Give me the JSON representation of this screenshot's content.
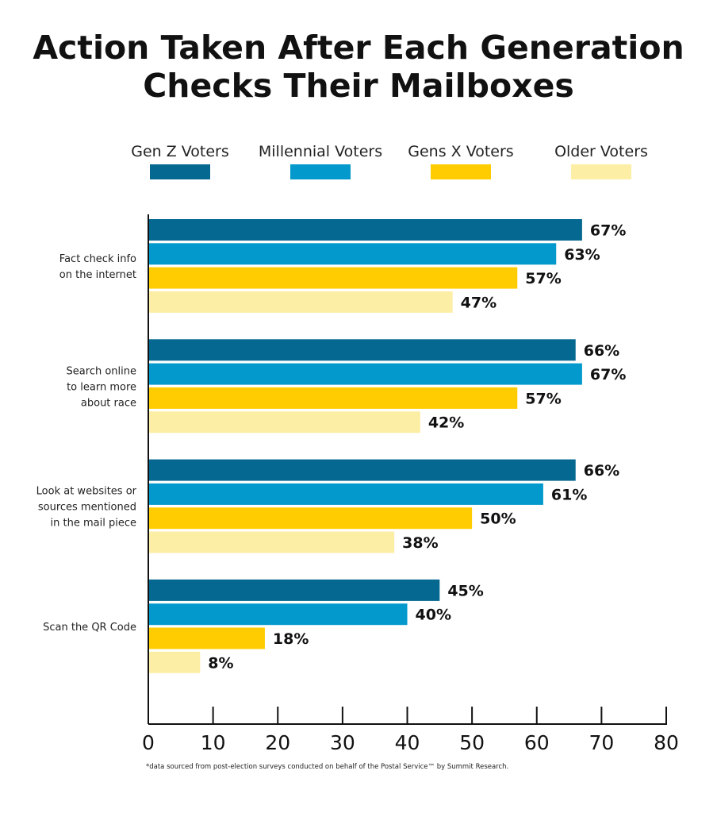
{
  "title_lines": [
    "Action Taken After Each Generation",
    "Checks Their Mailboxes"
  ],
  "footnote": "*data sourced from post-election surveys conducted on behalf of the Postal Service™ by Summit Research.",
  "chart_data": {
    "type": "bar",
    "orientation": "horizontal",
    "title": "Action Taken After Each Generation Checks Their Mailboxes",
    "categories": [
      "Fact check info on the internet",
      "Search online to learn more about race",
      "Look at websites or sources mentioned in the mail piece",
      "Scan the QR Code"
    ],
    "category_label_lines": [
      [
        "Fact check info",
        "on the internet"
      ],
      [
        "Search online",
        "to learn more",
        "about race"
      ],
      [
        "Look at websites or",
        "sources mentioned",
        "in the mail piece"
      ],
      [
        "Scan the QR Code"
      ]
    ],
    "series": [
      {
        "name": "Gen Z Voters",
        "color": "#046890",
        "values": [
          67,
          66,
          66,
          45
        ],
        "labels": [
          "67%",
          "66%",
          "66%",
          "45%"
        ]
      },
      {
        "name": "Millennial Voters",
        "color": "#0399cc",
        "values": [
          63,
          67,
          61,
          40
        ],
        "labels": [
          "63%",
          "67%",
          "61%",
          "40%"
        ]
      },
      {
        "name": "Gens X Voters",
        "color": "#fecc00",
        "values": [
          57,
          57,
          50,
          18
        ],
        "labels": [
          "57%",
          "57%",
          "50%",
          "18%"
        ]
      },
      {
        "name": "Older Voters",
        "color": "#fdeea5",
        "values": [
          47,
          42,
          38,
          8
        ],
        "labels": [
          "47%",
          "42%",
          "38%",
          "8%"
        ]
      }
    ],
    "xlim": [
      0,
      80
    ],
    "xticks": [
      "0",
      "10",
      "20",
      "30",
      "40",
      "50",
      "60",
      "70",
      "80"
    ],
    "legend_position": "top",
    "grid": false
  }
}
